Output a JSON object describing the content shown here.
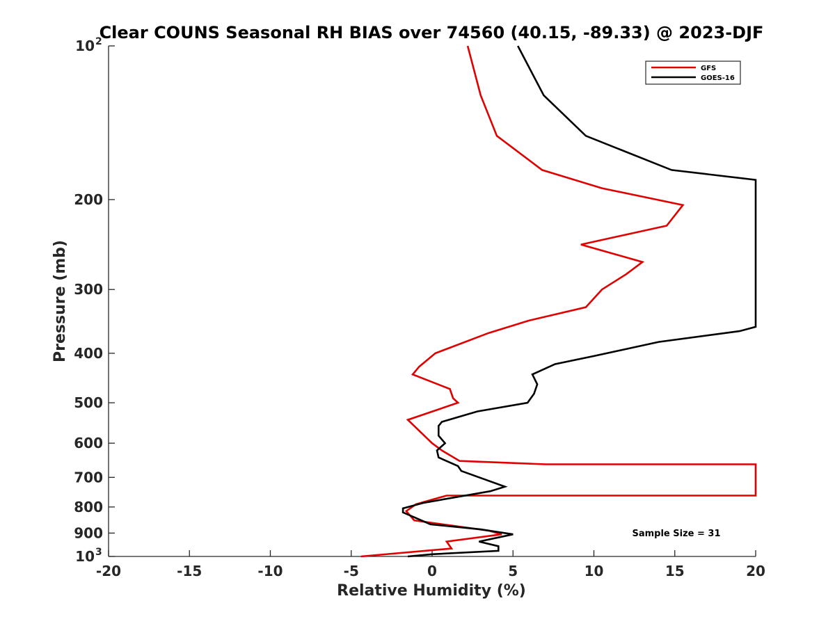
{
  "chart_data": {
    "type": "line",
    "title": "Clear COUNS Seasonal RH BIAS over 74560 (40.15, -89.33) @ 2023-DJF",
    "xlabel": "Relative Humidity (%)",
    "ylabel": "Pressure (mb)",
    "xlim": [
      -20,
      20
    ],
    "ylim": [
      100,
      1000
    ],
    "y_scale": "log",
    "y_reversed": true,
    "grid": false,
    "legend_position": "top-right",
    "x_ticks": [
      -20,
      -15,
      -10,
      -5,
      0,
      5,
      10,
      15,
      20
    ],
    "x_tick_labels": [
      "-20",
      "-15",
      "-10",
      "-5",
      "0",
      "5",
      "10",
      "15",
      "20"
    ],
    "y_ticks": [
      100,
      200,
      300,
      400,
      500,
      600,
      700,
      800,
      900,
      1000
    ],
    "y_tick_labels": [
      {
        "base": "10",
        "exp": "2"
      },
      {
        "base": "200",
        "exp": ""
      },
      {
        "base": "300",
        "exp": ""
      },
      {
        "base": "400",
        "exp": ""
      },
      {
        "base": "500",
        "exp": ""
      },
      {
        "base": "600",
        "exp": ""
      },
      {
        "base": "700",
        "exp": ""
      },
      {
        "base": "800",
        "exp": ""
      },
      {
        "base": "900",
        "exp": ""
      },
      {
        "base": "10",
        "exp": "3"
      }
    ],
    "annotation": "Sample Size = 31",
    "series": [
      {
        "name": "GFS",
        "color": "#e00000",
        "points": [
          {
            "x": 2.2,
            "y": 100
          },
          {
            "x": 3.0,
            "y": 125
          },
          {
            "x": 4.0,
            "y": 150
          },
          {
            "x": 6.8,
            "y": 175
          },
          {
            "x": 10.5,
            "y": 190
          },
          {
            "x": 15.5,
            "y": 205
          },
          {
            "x": 14.5,
            "y": 225
          },
          {
            "x": 9.2,
            "y": 245
          },
          {
            "x": 13.0,
            "y": 265
          },
          {
            "x": 12.0,
            "y": 280
          },
          {
            "x": 10.5,
            "y": 300
          },
          {
            "x": 9.5,
            "y": 325
          },
          {
            "x": 6.0,
            "y": 345
          },
          {
            "x": 3.5,
            "y": 365
          },
          {
            "x": 0.2,
            "y": 400
          },
          {
            "x": -0.8,
            "y": 425
          },
          {
            "x": -1.2,
            "y": 440
          },
          {
            "x": 1.1,
            "y": 470
          },
          {
            "x": 1.3,
            "y": 490
          },
          {
            "x": 1.6,
            "y": 500
          },
          {
            "x": -1.5,
            "y": 540
          },
          {
            "x": 0.0,
            "y": 600
          },
          {
            "x": 0.6,
            "y": 620
          },
          {
            "x": 1.7,
            "y": 650
          },
          {
            "x": 7.0,
            "y": 660
          },
          {
            "x": 20.0,
            "y": 660
          },
          {
            "x": 20.0,
            "y": 760
          },
          {
            "x": 0.9,
            "y": 760
          },
          {
            "x": -1.0,
            "y": 790
          },
          {
            "x": -1.6,
            "y": 815
          },
          {
            "x": -1.1,
            "y": 850
          },
          {
            "x": 3.5,
            "y": 890
          },
          {
            "x": 4.3,
            "y": 905
          },
          {
            "x": 0.9,
            "y": 935
          },
          {
            "x": 1.2,
            "y": 965
          },
          {
            "x": -4.4,
            "y": 1000
          }
        ]
      },
      {
        "name": "GOES-16",
        "color": "#000000",
        "points": [
          {
            "x": 5.3,
            "y": 100
          },
          {
            "x": 6.9,
            "y": 125
          },
          {
            "x": 9.5,
            "y": 150
          },
          {
            "x": 14.8,
            "y": 175
          },
          {
            "x": 20.0,
            "y": 183
          },
          {
            "x": 20.0,
            "y": 355
          },
          {
            "x": 19.0,
            "y": 362
          },
          {
            "x": 14.0,
            "y": 380
          },
          {
            "x": 10.0,
            "y": 405
          },
          {
            "x": 7.6,
            "y": 420
          },
          {
            "x": 6.2,
            "y": 440
          },
          {
            "x": 6.5,
            "y": 460
          },
          {
            "x": 6.3,
            "y": 480
          },
          {
            "x": 5.9,
            "y": 500
          },
          {
            "x": 2.8,
            "y": 520
          },
          {
            "x": 0.6,
            "y": 545
          },
          {
            "x": 0.4,
            "y": 555
          },
          {
            "x": 0.4,
            "y": 580
          },
          {
            "x": 0.8,
            "y": 600
          },
          {
            "x": 0.3,
            "y": 620
          },
          {
            "x": 0.4,
            "y": 640
          },
          {
            "x": 1.6,
            "y": 665
          },
          {
            "x": 1.8,
            "y": 680
          },
          {
            "x": 4.5,
            "y": 730
          },
          {
            "x": 3.6,
            "y": 745
          },
          {
            "x": -0.5,
            "y": 785
          },
          {
            "x": -1.8,
            "y": 805
          },
          {
            "x": -1.8,
            "y": 820
          },
          {
            "x": -0.1,
            "y": 865
          },
          {
            "x": 3.0,
            "y": 885
          },
          {
            "x": 5.0,
            "y": 905
          },
          {
            "x": 2.9,
            "y": 935
          },
          {
            "x": 4.1,
            "y": 955
          },
          {
            "x": 4.1,
            "y": 975
          },
          {
            "x": 0.0,
            "y": 990
          },
          {
            "x": -1.5,
            "y": 1000
          }
        ]
      }
    ]
  }
}
